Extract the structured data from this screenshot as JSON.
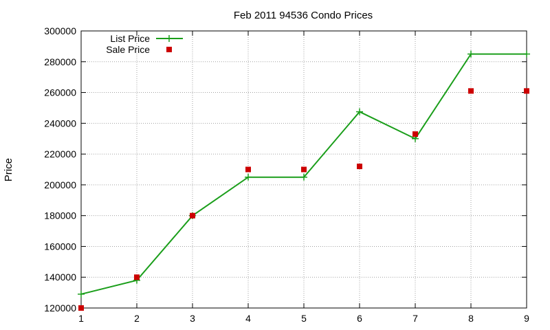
{
  "chart_data": {
    "type": "line",
    "title": "Feb 2011 94536 Condo Prices",
    "xlabel": "",
    "ylabel": "Price",
    "x": [
      1,
      2,
      3,
      4,
      5,
      6,
      7,
      8,
      9
    ],
    "xlim": [
      1,
      9
    ],
    "ylim": [
      120000,
      300000
    ],
    "xticks": [
      1,
      2,
      3,
      4,
      5,
      6,
      7,
      8,
      9
    ],
    "yticks": [
      120000,
      140000,
      160000,
      180000,
      200000,
      220000,
      240000,
      260000,
      280000,
      300000
    ],
    "grid": true,
    "legend_position": "top-left",
    "series": [
      {
        "name": "List Price",
        "style": "linespoints",
        "marker": "plus",
        "color": "#1a9e1a",
        "values": [
          129000,
          138000,
          180000,
          205000,
          205000,
          247500,
          230000,
          285000,
          285000
        ]
      },
      {
        "name": "Sale Price",
        "style": "points",
        "marker": "square",
        "color": "#cc0000",
        "values": [
          120000,
          140000,
          180000,
          210000,
          210000,
          212000,
          233000,
          261000,
          261000
        ]
      }
    ]
  }
}
